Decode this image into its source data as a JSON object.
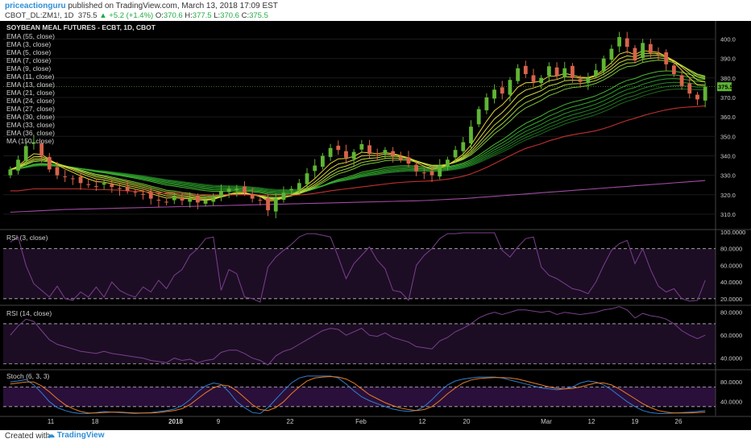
{
  "header": {
    "author": "priceactionguru",
    "published_text": "published on TradingView.com, March 13, 2018 17:09 EST",
    "symbol": "CBOT_DL:ZM1!, 1D",
    "last": "375.5",
    "change": "+5.2 (+1.4%)",
    "open_label": "O:",
    "open": "370.6",
    "high_label": "H:",
    "high": "377.5",
    "low_label": "L:",
    "low": "370.6",
    "close_label": "C:",
    "close": "375.5"
  },
  "footer": {
    "created_with": "Created with",
    "brand": "TradingView"
  },
  "colors": {
    "bg": "#000000",
    "up": "#5fb534",
    "down": "#d8634b",
    "ema_slow": "#2e9e2e",
    "ema_fast": "#e8d23a",
    "ma150": "#c13030",
    "ema55": "#a04aa0",
    "rsi_line": "#7b3f8f",
    "stoch_k": "#2f7fd0",
    "stoch_d": "#e87d24",
    "price_tag_bg": "#5fb534"
  },
  "chart_data": [
    {
      "type": "candlestick",
      "title": "SOYBEAN MEAL FUTURES - ECBT, 1D, CBOT",
      "indicators": [
        "EMA (55, close)",
        "EMA (3, close)",
        "EMA (5, close)",
        "EMA (7, close)",
        "EMA (9, close)",
        "EMA (11, close)",
        "EMA (13, close)",
        "EMA (21, close)",
        "EMA (24, close)",
        "EMA (27, close)",
        "EMA (30, close)",
        "EMA (33, close)",
        "EMA (36, close)",
        "MA (150, close)"
      ],
      "ylim": [
        305,
        406
      ],
      "y_ticks": [
        "310.0",
        "320.0",
        "330.0",
        "340.0",
        "350.0",
        "360.0",
        "370.0",
        "380.0",
        "390.0",
        "400.0"
      ],
      "current_price": "375.5",
      "close": [
        333,
        338,
        345,
        347,
        340,
        333,
        330,
        329,
        328,
        326,
        325,
        324,
        326,
        324,
        323,
        322,
        321,
        320,
        318,
        317,
        316,
        319,
        317,
        318,
        316,
        317,
        318,
        322,
        323,
        323,
        321,
        318,
        317,
        312,
        318,
        321,
        323,
        326,
        331,
        335,
        340,
        344,
        343,
        339,
        342,
        346,
        341,
        340,
        343,
        340,
        338,
        336,
        332,
        331,
        330,
        335,
        338,
        343,
        347,
        355,
        364,
        370,
        374,
        372,
        379,
        385,
        382,
        378,
        380,
        386,
        381,
        385,
        380,
        378,
        380,
        384,
        390,
        395,
        401,
        396,
        389,
        398,
        393,
        392,
        387,
        382,
        376,
        372,
        369,
        375.5
      ],
      "ma150": [
        311,
        311.2,
        311.4,
        311.6,
        311.8,
        312,
        312.2,
        312.4,
        312.5,
        312.6,
        312.7,
        312.8,
        312.9,
        313,
        313.1,
        313.2,
        313.3,
        313.4,
        313.5,
        313.6,
        313.7,
        313.8,
        313.9,
        314,
        314.1,
        314.2,
        314.3,
        314.4,
        314.5,
        314.6,
        314.7,
        314.8,
        314.9,
        315,
        315.1,
        315.2,
        315.3,
        315.4,
        315.5,
        315.6,
        315.7,
        315.8,
        315.9,
        316,
        316.1,
        316.2,
        316.3,
        316.4,
        316.5,
        316.6,
        316.7,
        316.8,
        316.9,
        317,
        317.2,
        317.4,
        317.6,
        317.8,
        318,
        318.3,
        318.6,
        318.9,
        319.2,
        319.5,
        319.8,
        320.1,
        320.4,
        320.7,
        321,
        321.3,
        321.6,
        321.9,
        322.2,
        322.5,
        322.8,
        323.1,
        323.4,
        323.7,
        324,
        324.3,
        324.6,
        324.9,
        325.2,
        325.5,
        325.8,
        326.1,
        326.4,
        326.7,
        327,
        327.3
      ],
      "ema55": [
        322,
        322,
        322.5,
        323,
        323,
        323,
        323,
        323,
        323,
        323,
        322.8,
        322.6,
        322.6,
        322.5,
        322.3,
        322,
        321.8,
        321.6,
        321.3,
        321,
        320.8,
        320.7,
        320.5,
        320.3,
        320.1,
        320,
        319.9,
        320,
        320,
        320,
        320,
        319.9,
        319.8,
        319.5,
        319.5,
        319.6,
        319.7,
        319.9,
        320.2,
        320.7,
        321.3,
        322,
        322.5,
        323,
        323.5,
        324,
        324.5,
        325,
        325.5,
        326,
        326.3,
        326.6,
        326.8,
        327,
        327.2,
        327.5,
        328,
        328.7,
        329.5,
        330.7,
        332.3,
        334,
        336,
        338,
        340,
        342,
        343.8,
        345,
        346.2,
        347.7,
        348.8,
        350,
        350.8,
        351.5,
        352.1,
        352.9,
        354,
        355.3,
        356.8,
        358.2,
        359.3,
        360.6,
        361.7,
        362.7,
        363.6,
        364.3,
        364.8,
        365.1,
        365.3,
        365.7
      ]
    },
    {
      "type": "line",
      "title": "RSI (3, close)",
      "ylim": [
        15,
        100
      ],
      "y_ticks": [
        "20.0000",
        "40.0000",
        "60.0000",
        "80.0000",
        "100.0000"
      ],
      "levels": [
        20,
        80
      ],
      "values": [
        88,
        94,
        60,
        38,
        30,
        22,
        35,
        20,
        18,
        28,
        22,
        34,
        22,
        40,
        30,
        25,
        22,
        34,
        28,
        42,
        32,
        48,
        55,
        72,
        80,
        92,
        94,
        30,
        55,
        50,
        22,
        20,
        16,
        58,
        70,
        78,
        85,
        94,
        98,
        98,
        96,
        94,
        70,
        44,
        62,
        72,
        82,
        66,
        56,
        30,
        28,
        18,
        60,
        72,
        80,
        92,
        98,
        98,
        99,
        99,
        99,
        99,
        99,
        78,
        70,
        82,
        92,
        94,
        58,
        48,
        44,
        38,
        32,
        30,
        26,
        40,
        60,
        78,
        86,
        90,
        62,
        80,
        55,
        35,
        28,
        32,
        20,
        17,
        18,
        42
      ]
    },
    {
      "type": "line",
      "title": "RSI (14, close)",
      "ylim": [
        32,
        84
      ],
      "y_ticks": [
        "40.0000",
        "60.0000",
        "80.0000"
      ],
      "levels": [
        35,
        70
      ],
      "values": [
        60,
        68,
        74,
        72,
        64,
        56,
        52,
        50,
        48,
        46,
        45,
        44,
        46,
        44,
        43,
        42,
        41,
        40,
        38,
        37,
        36,
        40,
        38,
        39,
        36,
        38,
        39,
        45,
        47,
        47,
        44,
        40,
        38,
        34,
        42,
        46,
        48,
        52,
        56,
        60,
        64,
        66,
        65,
        60,
        63,
        66,
        60,
        59,
        62,
        58,
        56,
        54,
        50,
        49,
        48,
        55,
        58,
        63,
        66,
        70,
        75,
        78,
        80,
        78,
        80,
        82,
        82,
        81,
        80,
        81,
        78,
        80,
        79,
        78,
        79,
        80,
        82,
        83,
        85,
        82,
        75,
        79,
        77,
        76,
        74,
        70,
        64,
        60,
        57,
        60
      ]
    },
    {
      "type": "line",
      "title": "Stoch (6, 3, 3)",
      "ylim": [
        15,
        100
      ],
      "y_ticks": [
        "40.0000",
        "80.0000"
      ],
      "levels": [
        30,
        70
      ],
      "series": [
        {
          "values": [
            80,
            82,
            85,
            74,
            58,
            40,
            28,
            22,
            18,
            16,
            16,
            18,
            20,
            19,
            18,
            17,
            16,
            17,
            18,
            20,
            22,
            25,
            32,
            44,
            60,
            72,
            78,
            75,
            60,
            40,
            28,
            18,
            16,
            28,
            45,
            62,
            78,
            88,
            92,
            92,
            92,
            92,
            88,
            76,
            62,
            50,
            42,
            36,
            30,
            25,
            22,
            20,
            22,
            30,
            44,
            60,
            74,
            82,
            86,
            88,
            90,
            90,
            90,
            88,
            84,
            80,
            76,
            72,
            68,
            66,
            64,
            66,
            70,
            78,
            82,
            80,
            74,
            64,
            52,
            40,
            30,
            22,
            18,
            16,
            16,
            17,
            18,
            19,
            20,
            22
          ]
        },
        {
          "values": [
            76,
            78,
            80,
            80,
            72,
            60,
            46,
            34,
            26,
            20,
            17,
            17,
            18,
            19,
            19,
            18,
            17,
            17,
            17,
            18,
            20,
            22,
            26,
            34,
            46,
            58,
            68,
            74,
            72,
            62,
            48,
            34,
            24,
            22,
            28,
            40,
            56,
            70,
            82,
            88,
            90,
            91,
            90,
            86,
            78,
            66,
            54,
            46,
            38,
            32,
            27,
            24,
            22,
            24,
            30,
            42,
            56,
            68,
            78,
            84,
            87,
            88,
            89,
            89,
            88,
            86,
            82,
            78,
            74,
            70,
            67,
            66,
            67,
            70,
            74,
            78,
            78,
            74,
            66,
            56,
            46,
            36,
            28,
            22,
            19,
            17,
            17,
            17,
            18,
            19
          ]
        }
      ]
    }
  ],
  "x_axis": {
    "labels": [
      "11",
      "18",
      "2018",
      "9",
      "22",
      "Feb",
      "12",
      "20",
      "Mar",
      "12",
      "19",
      "26"
    ]
  }
}
